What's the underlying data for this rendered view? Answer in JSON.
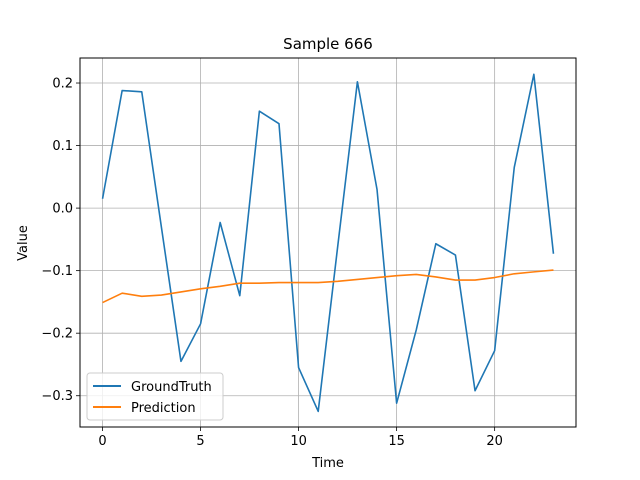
{
  "chart_data": {
    "type": "line",
    "title": "Sample 666",
    "xlabel": "Time",
    "ylabel": "Value",
    "xlim": [
      -1.15,
      24.15
    ],
    "ylim": [
      -0.35,
      0.24
    ],
    "xticks": [
      0,
      5,
      10,
      15,
      20
    ],
    "yticks": [
      -0.3,
      -0.2,
      -0.1,
      0.0,
      0.1,
      0.2
    ],
    "xtick_labels": [
      "0",
      "5",
      "10",
      "15",
      "20"
    ],
    "ytick_labels": [
      "−0.3",
      "−0.2",
      "−0.1",
      "0.0",
      "0.1",
      "0.2"
    ],
    "grid": true,
    "legend_position": "lower-left",
    "x": [
      0,
      1,
      2,
      3,
      4,
      5,
      6,
      7,
      8,
      9,
      10,
      11,
      12,
      13,
      14,
      15,
      16,
      17,
      18,
      19,
      20,
      21,
      22,
      23
    ],
    "series": [
      {
        "name": "GroundTruth",
        "color": "#1f77b4",
        "values": [
          0.015,
          0.188,
          0.186,
          -0.03,
          -0.245,
          -0.185,
          -0.023,
          -0.14,
          0.155,
          0.135,
          -0.255,
          -0.325,
          -0.06,
          0.202,
          0.03,
          -0.312,
          -0.195,
          -0.057,
          -0.075,
          -0.292,
          -0.228,
          0.065,
          0.214,
          -0.073
        ]
      },
      {
        "name": "Prediction",
        "color": "#ff7f0e",
        "values": [
          -0.151,
          -0.136,
          -0.141,
          -0.139,
          -0.134,
          -0.129,
          -0.125,
          -0.12,
          -0.12,
          -0.119,
          -0.119,
          -0.119,
          -0.117,
          -0.114,
          -0.111,
          -0.108,
          -0.106,
          -0.11,
          -0.115,
          -0.115,
          -0.111,
          -0.105,
          -0.102,
          -0.099
        ]
      }
    ]
  }
}
